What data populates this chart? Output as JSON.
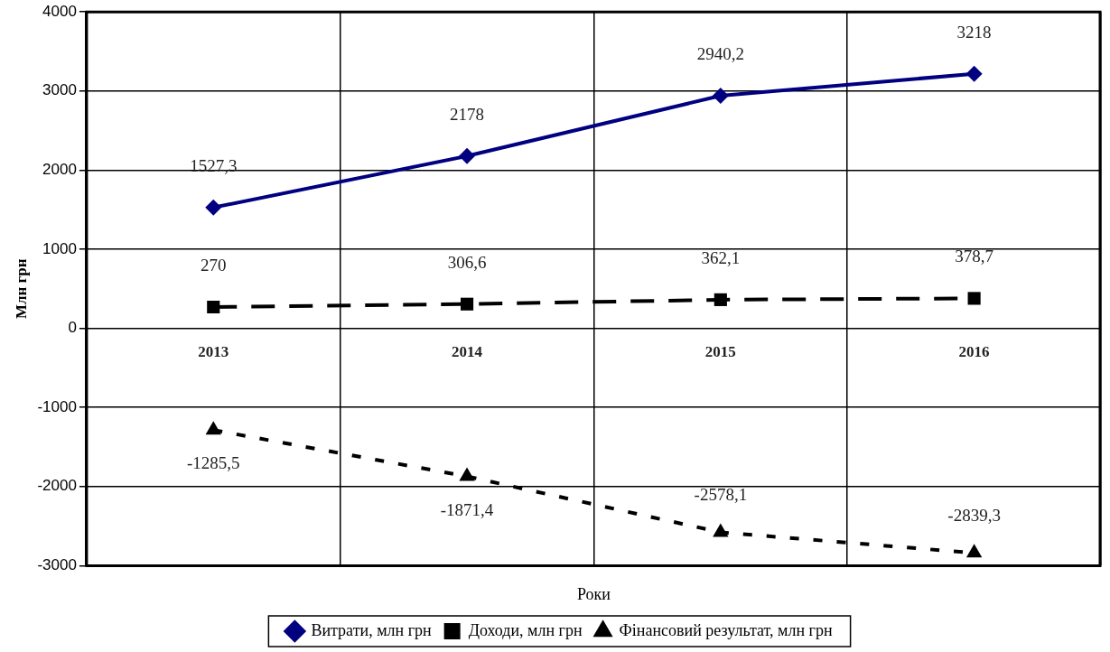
{
  "chart_data": {
    "type": "line",
    "xlabel": "Роки",
    "ylabel": "Млн грн",
    "categories": [
      "2013",
      "2014",
      "2015",
      "2016"
    ],
    "ylim": [
      -3000,
      4000
    ],
    "yticks": [
      -3000,
      -2000,
      -1000,
      0,
      1000,
      2000,
      3000,
      4000
    ],
    "grid": true,
    "legend": "bottom",
    "series": [
      {
        "name": "Витрати, млн грн",
        "color": "#000080",
        "marker": "diamond",
        "line_style": "solid",
        "values": [
          1527.3,
          2178,
          2940.2,
          3218
        ],
        "value_labels": [
          "1527,3",
          "2178",
          "2940,2",
          "3218"
        ]
      },
      {
        "name": "Доходи, млн грн",
        "color": "#000000",
        "marker": "square",
        "line_style": "dashed",
        "values": [
          270,
          306.6,
          362.1,
          378.7
        ],
        "value_labels": [
          "270",
          "306,6",
          "362,1",
          "378,7"
        ]
      },
      {
        "name": "Фінансовий результат, млн грн",
        "color": "#000000",
        "marker": "triangle",
        "line_style": "dotted",
        "values": [
          -1285.5,
          -1871.4,
          -2578.1,
          -2839.3
        ],
        "value_labels": [
          "-1285,5",
          "-1871,4",
          "-2578,1",
          "-2839,3"
        ]
      }
    ]
  }
}
